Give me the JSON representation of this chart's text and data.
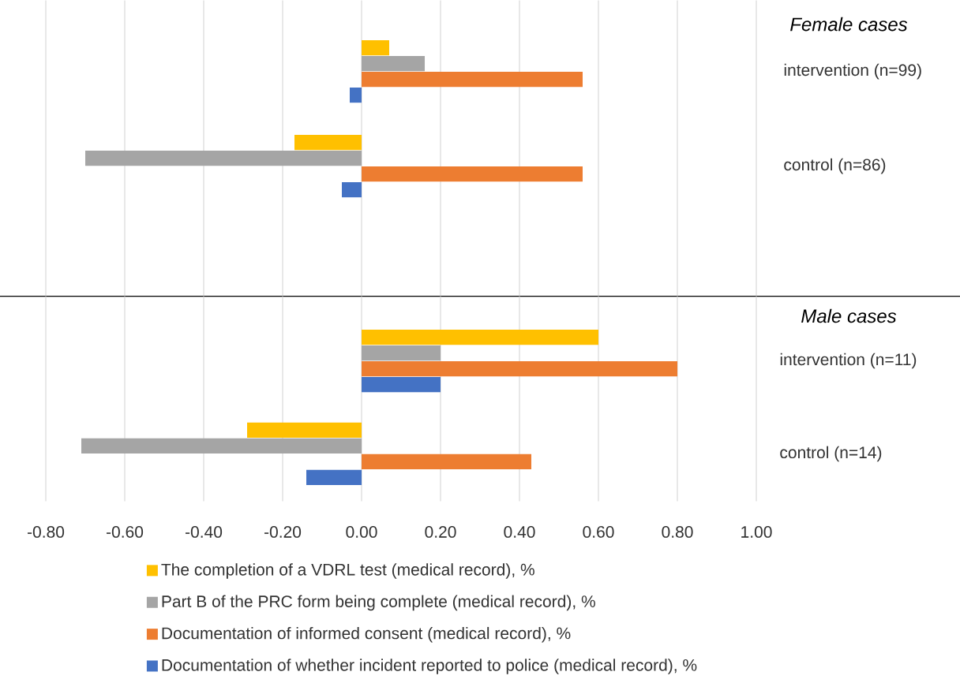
{
  "chart_data": [
    {
      "type": "bar",
      "orientation": "horizontal",
      "title": "Female cases",
      "categories": [
        "intervention (n=99)",
        "control (n=86)"
      ],
      "series": [
        {
          "color": "#ffc000",
          "values": [
            0.07,
            -0.17
          ]
        },
        {
          "color": "#a5a5a5",
          "values": [
            0.16,
            -0.7
          ]
        },
        {
          "color": "#ed7d31",
          "values": [
            0.56,
            0.56
          ]
        },
        {
          "color": "#4472c4",
          "values": [
            -0.03,
            -0.05
          ]
        }
      ],
      "xlim": [
        -0.8,
        1.0
      ],
      "xticks": [
        -0.8,
        -0.6,
        -0.4,
        -0.2,
        0,
        0.2,
        0.4,
        0.6,
        0.8,
        1.0
      ],
      "grid": "x",
      "legend": false,
      "tick_labels": "y"
    },
    {
      "type": "bar",
      "orientation": "horizontal",
      "title": "Male cases",
      "categories": [
        "intervention (n=11)",
        "control (n=14)"
      ],
      "series": [
        {
          "name": "The completion of a VDRL test (medical record), %",
          "color": "#ffc000",
          "values": [
            0.6,
            -0.29
          ]
        },
        {
          "name": "Part B of the PRC form being complete (medical  record), %",
          "color": "#a5a5a5",
          "values": [
            0.2,
            -0.71
          ]
        },
        {
          "name": "Documentation of informed consent (medical record), %",
          "color": "#ed7d31",
          "values": [
            0.8,
            0.43
          ]
        },
        {
          "name": "Documentation of whether incident reported to police (medical record), %",
          "color": "#4472c4",
          "values": [
            0.2,
            -0.14
          ]
        }
      ],
      "xlim": [
        -0.8,
        1.0
      ],
      "xticks": [
        {
          "value": -0.8,
          "label": "-0.80"
        },
        {
          "value": -0.6,
          "label": "-0.60"
        },
        {
          "value": -0.4,
          "label": "-0.40"
        },
        {
          "value": -0.2,
          "label": "-0.20"
        },
        {
          "value": 0,
          "label": "0.00"
        },
        {
          "value": 0.2,
          "label": "0.20"
        },
        {
          "value": 0.4,
          "label": "0.40"
        },
        {
          "value": 0.6,
          "label": "0.60"
        },
        {
          "value": 0.8,
          "label": "0.80"
        },
        {
          "value": 1.0,
          "label": "1.00"
        }
      ],
      "grid": "x",
      "legend": "bottom"
    }
  ]
}
